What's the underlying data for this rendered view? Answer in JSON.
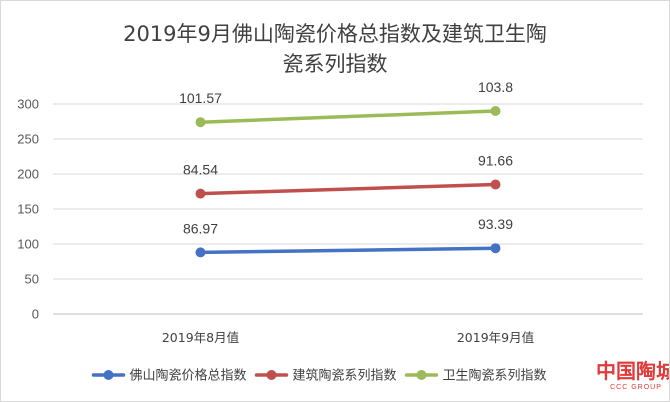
{
  "chart_data": {
    "type": "line",
    "title_lines": [
      "2019年9月佛山陶瓷价格总指数及建筑卫生陶",
      "瓷系列指数"
    ],
    "categories": [
      "2019年8月值",
      "2019年9月值"
    ],
    "ylim": [
      0,
      300
    ],
    "yticks": [
      0,
      50,
      100,
      150,
      200,
      250,
      300
    ],
    "grid": true,
    "legend_position": "bottom",
    "series": [
      {
        "name": "佛山陶瓷价格总指数",
        "color": "#4472C4",
        "values": [
          88,
          94
        ],
        "labels": [
          "86.97",
          "93.39"
        ]
      },
      {
        "name": "建筑陶瓷系列指数",
        "color": "#C0504D",
        "values": [
          172,
          185
        ],
        "labels": [
          "84.54",
          "91.66"
        ]
      },
      {
        "name": "卫生陶瓷系列指数",
        "color": "#9BBB59",
        "values": [
          274,
          290
        ],
        "labels": [
          "101.57",
          "103.8"
        ]
      }
    ]
  },
  "watermark": {
    "text": "中国陶城",
    "subtext": "CCC GROUP",
    "color": "#e03a3a"
  }
}
